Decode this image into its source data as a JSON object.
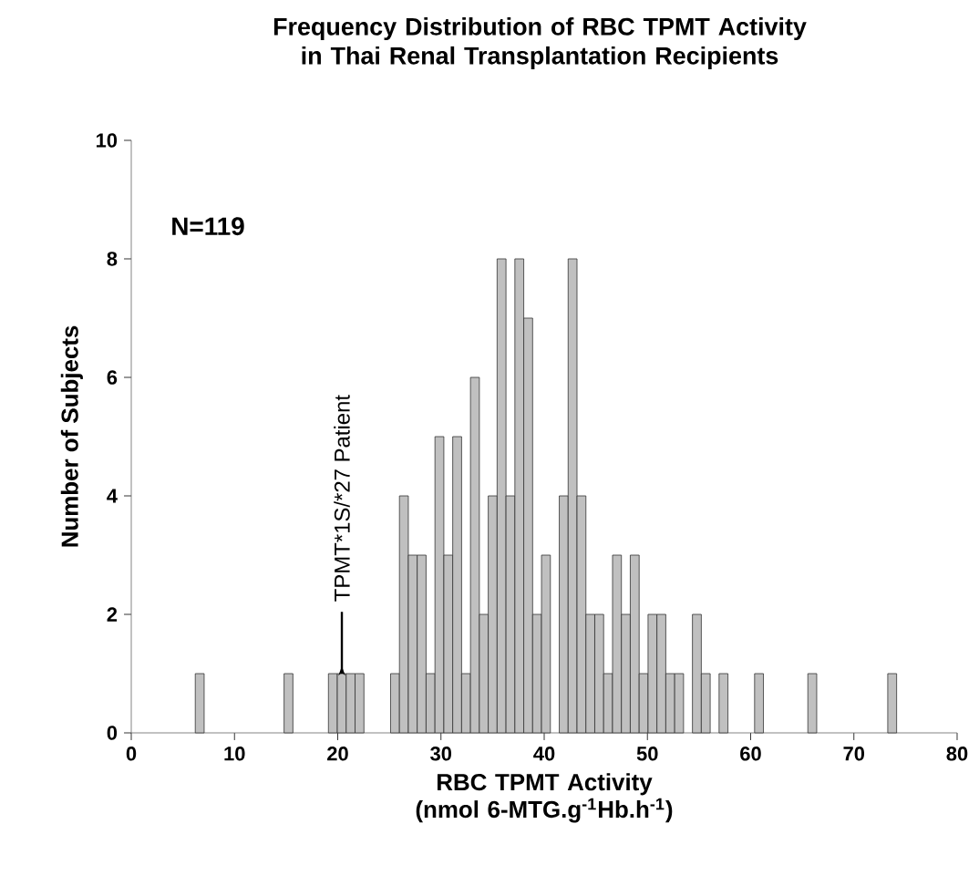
{
  "chart_data": {
    "type": "histogram",
    "title": "Frequency Distribution of RBC TPMT Activity in Thai Renal Transplantation Recipients",
    "xlabel": "RBC TPMT Activity (nmol 6-MTG.g$^{-1}$Hb.h$^{-1}$)",
    "ylabel": "Number of Subjects",
    "bins": [
      6.2,
      7.06,
      7.92,
      8.78,
      9.64,
      10.5,
      11.36,
      12.22,
      13.08,
      13.94,
      14.8,
      15.66,
      16.52,
      17.38,
      18.24,
      19.1,
      19.96,
      20.82,
      21.68,
      22.54,
      23.4,
      24.26,
      25.12,
      25.98,
      26.84,
      27.7,
      28.56,
      29.42,
      30.28,
      31.14,
      32,
      32.86,
      33.72,
      34.58,
      35.44,
      36.3,
      37.16,
      38.02,
      38.88,
      39.74,
      40.6,
      41.46,
      42.32,
      43.18,
      44.04,
      44.9,
      45.76,
      46.62,
      47.48,
      48.34,
      49.2,
      50.06,
      50.92,
      51.78,
      52.64,
      53.5,
      54.36,
      55.22,
      56.08,
      56.94,
      57.8,
      58.66,
      59.52,
      60.38,
      61.24,
      62.1,
      62.96,
      63.82,
      64.68,
      65.54,
      66.4,
      67.26,
      68.12,
      68.98,
      69.84,
      70.7,
      71.56,
      72.42,
      73.28,
      74.14
    ],
    "values": [
      1,
      0,
      0,
      0,
      0,
      0,
      0,
      0,
      0,
      0,
      1,
      0,
      0,
      0,
      0,
      1,
      1,
      1,
      1,
      0,
      0,
      0,
      1,
      4,
      3,
      3,
      1,
      5,
      3,
      5,
      1,
      6,
      2,
      4,
      8,
      4,
      8,
      7,
      2,
      3,
      0,
      4,
      8,
      4,
      2,
      2,
      1,
      3,
      2,
      3,
      1,
      2,
      2,
      1,
      1,
      0,
      2,
      1,
      0,
      1,
      0,
      0,
      0,
      1,
      0,
      0,
      0,
      0,
      0,
      1,
      0,
      0,
      0,
      0,
      0,
      0,
      0,
      0,
      1
    ],
    "color": "#c0c0c0",
    "xlim": [
      0,
      80
    ],
    "ylim": [
      0,
      10
    ],
    "xticks": [
      0,
      10,
      20,
      30,
      40,
      50,
      60,
      70,
      80
    ],
    "yticks": [
      0,
      2,
      4,
      6,
      8,
      10
    ],
    "grid": false,
    "annotations": [
      "N=119",
      {
        "text": "TPMT*1S/*27 Patient",
        "x": 20.4,
        "y": 1
      }
    ]
  }
}
